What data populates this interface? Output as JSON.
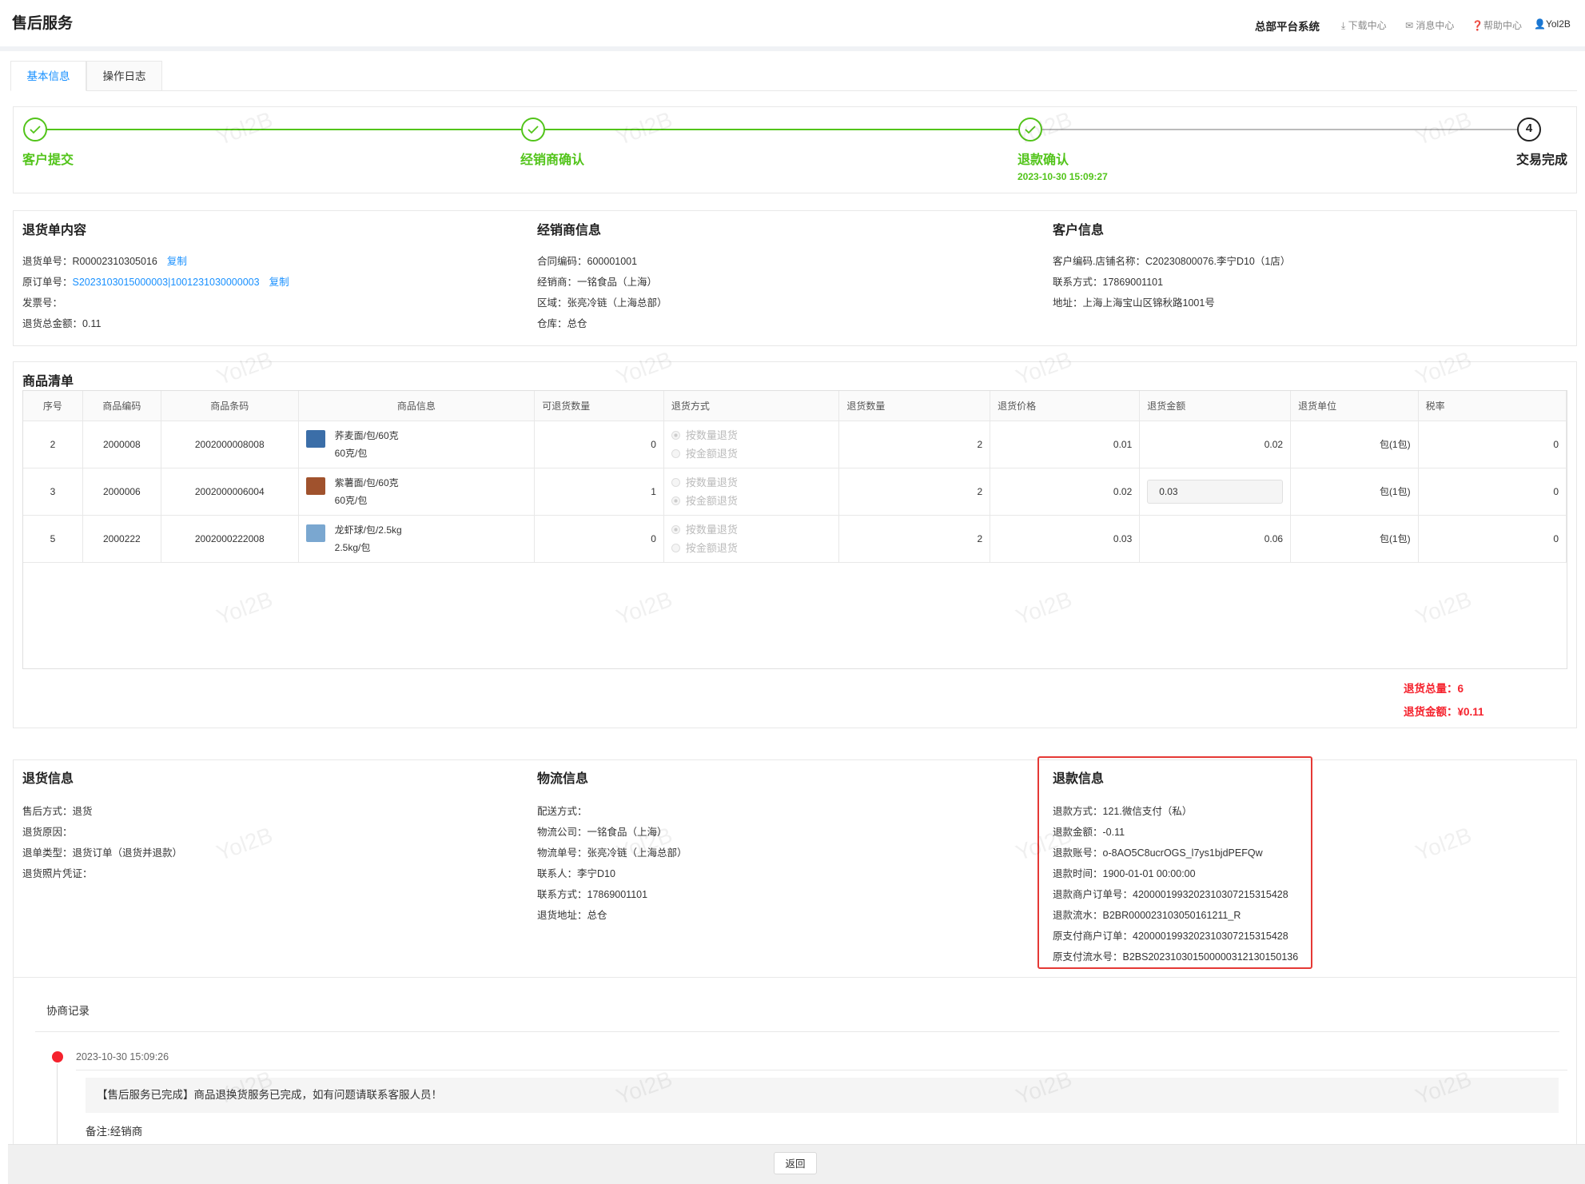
{
  "header": {
    "title": "售后服务",
    "nav": [
      "总部平台系统",
      "下载中心",
      "消息中心",
      "帮助中心",
      "Yol2B"
    ]
  },
  "tabs": {
    "items": [
      "基本信息",
      "操作日志"
    ],
    "active": 0
  },
  "watermark": "Yol2B",
  "steps": [
    {
      "label": "客户提交",
      "status": "done"
    },
    {
      "label": "经销商确认",
      "status": "done"
    },
    {
      "label": "退款确认",
      "status": "done",
      "time": "2023-10-30 15:09:27"
    },
    {
      "number": "4",
      "label": "交易完成",
      "status": "pending"
    }
  ],
  "info": [
    {
      "title": "退货单内容",
      "fields": [
        {
          "label": "退货单号：",
          "value": "R00002310305016",
          "link": "复制"
        },
        {
          "label": "原订单号：",
          "value": "S2023103015000003|1001231030000003",
          "link": "复制",
          "value_link": true
        },
        {
          "label": "发票号："
        },
        {
          "label": "退货总金额：",
          "value": "0.11"
        }
      ]
    },
    {
      "title": "经销商信息",
      "fields": [
        {
          "label": "合同编码：",
          "value": "600001001"
        },
        {
          "label": "经销商：",
          "value": "一铭食品（上海）"
        },
        {
          "label": "区域：",
          "value": "张亮冷链（上海总部）"
        },
        {
          "label": "仓库：",
          "value": "总仓"
        }
      ]
    },
    {
      "title": "客户信息",
      "fields": [
        {
          "label": "客户编码.店铺名称：",
          "value": "C20230800076.李宁D10（1店）"
        },
        {
          "label": "联系方式：",
          "value": "17869001101"
        },
        {
          "label": "地址：",
          "value": "上海上海宝山区锦秋路1001号"
        }
      ]
    }
  ],
  "goods": {
    "title": "商品清单",
    "method_options": [
      "按数量退货",
      "按金额退货"
    ],
    "columns": [
      "序号",
      "商品编码",
      "商品条码",
      "商品信息",
      "可退货数量",
      "退货方式",
      "退货数量",
      "退货价格",
      "退货金额",
      "退货单位",
      "税率"
    ],
    "rows": [
      {
        "seq": 2,
        "code": "2000008",
        "barcode": "2002000008008",
        "name": "荞麦面/包/60克",
        "spec": "60克/包",
        "returnable": 0,
        "method": 0,
        "qty": 2,
        "price": 0.01,
        "amount": 0.02,
        "unit": "包(1包)",
        "tax": 0
      },
      {
        "seq": 3,
        "code": "2000006",
        "barcode": "2002000006004",
        "name": "紫薯面/包/60克",
        "spec": "60克/包",
        "returnable": 1,
        "method": 1,
        "qty": 2,
        "price": 0.02,
        "amount": 0.03,
        "amount_input": true,
        "unit": "包(1包)",
        "tax": 0
      },
      {
        "seq": 5,
        "code": "2000222",
        "barcode": "2002000222008",
        "name": "龙虾球/包/2.5kg",
        "spec": "2.5kg/包",
        "returnable": 0,
        "method": 0,
        "qty": 2,
        "price": 0.03,
        "amount": 0.06,
        "unit": "包(1包)",
        "tax": 0
      }
    ],
    "totals": [
      {
        "label": "退货总量：",
        "value": "6"
      },
      {
        "label": "退货金额：",
        "value": "¥0.11"
      }
    ]
  },
  "details": [
    {
      "title": "退货信息",
      "fields": [
        {
          "label": "售后方式：",
          "value": "退货"
        },
        {
          "label": "退货原因："
        },
        {
          "label": "退单类型：",
          "value": "退货订单（退货并退款）"
        },
        {
          "label": "退货照片凭证："
        }
      ]
    },
    {
      "title": "物流信息",
      "fields": [
        {
          "label": "配送方式："
        },
        {
          "label": "物流公司：",
          "value": "一铭食品（上海）"
        },
        {
          "label": "物流单号：",
          "value": "张亮冷链（上海总部）"
        },
        {
          "label": "联系人：",
          "value": "李宁D10"
        },
        {
          "label": "联系方式：",
          "value": "17869001101"
        },
        {
          "label": "退货地址：",
          "value": "总仓"
        }
      ]
    },
    {
      "title": "退款信息",
      "highlight": true,
      "fields": [
        {
          "label": "退款方式：",
          "value": "121.微信支付（私）"
        },
        {
          "label": "退款金额：",
          "value": "-0.11"
        },
        {
          "label": "退款账号：",
          "value": "o-8AO5C8ucrOGS_l7ys1bjdPEFQw"
        },
        {
          "label": "退款时间：",
          "value": "1900-01-01 00:00:00"
        },
        {
          "label": "退款商户订单号：",
          "value": "4200001993202310307215315428"
        },
        {
          "label": "退款流水：",
          "value": "B2BR000023103050161211_R"
        },
        {
          "label": "原支付商户订单：",
          "value": "4200001993202310307215315428"
        },
        {
          "label": "原支付流水号：",
          "value": "B2BS202310301500000312130150136"
        }
      ]
    }
  ],
  "negotiation": {
    "title": "协商记录",
    "records": [
      {
        "time": "2023-10-30 15:09:26",
        "message": "【售后服务已完成】商品退换货服务已完成，如有问题请联系客服人员！",
        "note": "备注:经销商"
      }
    ]
  },
  "footer": {
    "button": "返回"
  }
}
